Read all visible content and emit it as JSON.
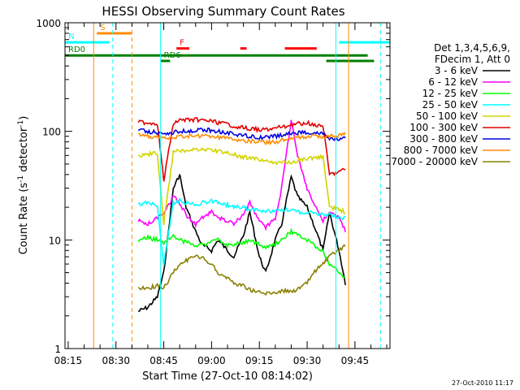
{
  "chart_data": {
    "type": "line",
    "title": "HESSI Observing Summary Count Rates",
    "xlabel": "Start Time (27-Oct-10 08:14:02)",
    "ylabel_main": "Count Rate (s",
    "ylabel_sup1": "-1",
    "ylabel_mid": " detector",
    "ylabel_sup2": "-1",
    "ylabel_end": ")",
    "yscale": "log",
    "ylim": [
      1,
      1000
    ],
    "xlim": [
      "08:14",
      "09:56"
    ],
    "xticks": [
      "08:15",
      "08:30",
      "08:45",
      "09:00",
      "09:15",
      "09:30",
      "09:45"
    ],
    "yticks": [
      "1",
      "10",
      "100",
      "1000"
    ],
    "timestamp": "27-Oct-2010 11:17",
    "legend": {
      "header1": "Det 1,3,4,5,6,9,",
      "header2": "FDecim 1, Att 0",
      "entries": [
        {
          "label": "3 - 6 keV",
          "color": "#000000"
        },
        {
          "label": "6 - 12 keV",
          "color": "#ff00ff"
        },
        {
          "label": "12 - 25 keV",
          "color": "#00ff00"
        },
        {
          "label": "25 - 50 keV",
          "color": "#00ffff"
        },
        {
          "label": "50 - 100 keV",
          "color": "#d4d400"
        },
        {
          "label": "100 - 300 keV",
          "color": "#e00000"
        },
        {
          "label": "300 - 800 keV",
          "color": "#0000e0"
        },
        {
          "label": "800 - 7000 keV",
          "color": "#ff8c00"
        },
        {
          "label": "7000 - 20000 keV",
          "color": "#8b8000"
        }
      ]
    },
    "flags": [
      {
        "label": "S",
        "color": "#ff8c00",
        "level": 800,
        "start": "08:24",
        "end": "08:35"
      },
      {
        "label": "N",
        "color": "#00ffff",
        "level": 660,
        "start": "08:14",
        "end": "08:28"
      },
      {
        "label": "N",
        "color": "#00ffff",
        "level": 660,
        "start": "09:40",
        "end": "09:56"
      },
      {
        "label": "F",
        "color": "#ff0000",
        "level": 580,
        "start": "08:49",
        "end": "08:53"
      },
      {
        "label": "F",
        "color": "#ff0000",
        "level": 580,
        "start": "09:09",
        "end": "09:11"
      },
      {
        "label": "F",
        "color": "#ff0000",
        "level": 580,
        "start": "09:23",
        "end": "09:33"
      },
      {
        "label": "RD0",
        "color": "#008000",
        "level": 500,
        "start": "08:14",
        "end": "09:49"
      },
      {
        "label": "RD6",
        "color": "#008000",
        "level": 445,
        "start": "08:44",
        "end": "08:47"
      },
      {
        "label": "RD6",
        "color": "#008000",
        "level": 445,
        "start": "09:36",
        "end": "09:51"
      }
    ],
    "vlines": [
      {
        "t": "08:23",
        "color": "#ff8c00",
        "dash": false
      },
      {
        "t": "08:29",
        "color": "#00ffff",
        "dash": true
      },
      {
        "t": "08:35",
        "color": "#ff8c00",
        "dash": true
      },
      {
        "t": "08:44",
        "color": "#00ffff",
        "dash": false
      },
      {
        "t": "09:39",
        "color": "#00ffff",
        "dash": false
      },
      {
        "t": "09:43",
        "color": "#ff8c00",
        "dash": false
      },
      {
        "t": "09:53",
        "color": "#00ffff",
        "dash": true
      }
    ],
    "series": [
      {
        "name": "3 - 6 keV",
        "color": "#000000",
        "t": [
          "08:37",
          "08:40",
          "08:43",
          "08:45",
          "08:48",
          "08:50",
          "08:52",
          "08:55",
          "08:57",
          "09:00",
          "09:02",
          "09:05",
          "09:07",
          "09:10",
          "09:12",
          "09:15",
          "09:17",
          "09:20",
          "09:22",
          "09:25",
          "09:27",
          "09:30",
          "09:32",
          "09:35",
          "09:37",
          "09:40",
          "09:42"
        ],
        "v": [
          2.2,
          2.4,
          3.0,
          5,
          30,
          40,
          20,
          12,
          9,
          8,
          10,
          8,
          7,
          11,
          18,
          7,
          5,
          10,
          14,
          38,
          25,
          20,
          14,
          8,
          18,
          8,
          4
        ]
      },
      {
        "name": "6 - 12 keV",
        "color": "#ff00ff",
        "t": [
          "08:37",
          "08:40",
          "08:43",
          "08:45",
          "08:48",
          "08:50",
          "08:52",
          "08:55",
          "08:57",
          "09:00",
          "09:02",
          "09:05",
          "09:07",
          "09:10",
          "09:12",
          "09:15",
          "09:17",
          "09:20",
          "09:22",
          "09:25",
          "09:27",
          "09:30",
          "09:32",
          "09:35",
          "09:37",
          "09:40",
          "09:42"
        ],
        "v": [
          15,
          14,
          16,
          18,
          25,
          22,
          17,
          14,
          16,
          18,
          16,
          15,
          14,
          17,
          22,
          15,
          13,
          16,
          30,
          130,
          60,
          30,
          22,
          15,
          18,
          16,
          12
        ]
      },
      {
        "name": "12 - 25 keV",
        "color": "#00ff00",
        "t": [
          "08:37",
          "08:40",
          "08:43",
          "08:45",
          "08:48",
          "08:50",
          "08:52",
          "08:55",
          "08:57",
          "09:00",
          "09:02",
          "09:05",
          "09:07",
          "09:10",
          "09:12",
          "09:15",
          "09:17",
          "09:20",
          "09:22",
          "09:25",
          "09:27",
          "09:30",
          "09:32",
          "09:35",
          "09:37",
          "09:40",
          "09:42"
        ],
        "v": [
          10,
          10.5,
          10,
          9.5,
          11,
          10,
          9.5,
          9,
          9,
          9.5,
          10,
          9,
          9,
          9.5,
          10,
          9,
          8.5,
          9,
          10,
          12,
          11,
          10,
          9,
          8,
          6,
          5,
          4.5
        ]
      },
      {
        "name": "25 - 50 keV",
        "color": "#00ffff",
        "t": [
          "08:37",
          "08:40",
          "08:43",
          "08:45",
          "08:48",
          "08:50",
          "08:52",
          "08:55",
          "08:57",
          "09:00",
          "09:02",
          "09:05",
          "09:07",
          "09:10",
          "09:12",
          "09:15",
          "09:17",
          "09:20",
          "09:22",
          "09:25",
          "09:27",
          "09:30",
          "09:32",
          "09:35",
          "09:37",
          "09:40",
          "09:42"
        ],
        "v": [
          21,
          22,
          21,
          6,
          22,
          23,
          22,
          21,
          22,
          23,
          22,
          21,
          20,
          20,
          19,
          19,
          18,
          19,
          19,
          19,
          18,
          18,
          18,
          17,
          17,
          16,
          16
        ]
      },
      {
        "name": "50 - 100 keV",
        "color": "#d4d400",
        "t": [
          "08:37",
          "08:40",
          "08:43",
          "08:45",
          "08:48",
          "08:50",
          "08:52",
          "08:55",
          "08:57",
          "09:00",
          "09:02",
          "09:05",
          "09:07",
          "09:10",
          "09:12",
          "09:15",
          "09:17",
          "09:20",
          "09:22",
          "09:25",
          "09:27",
          "09:30",
          "09:32",
          "09:35",
          "09:37",
          "09:40",
          "09:42"
        ],
        "v": [
          60,
          62,
          63,
          14,
          64,
          66,
          67,
          68,
          68,
          67,
          66,
          63,
          61,
          58,
          57,
          55,
          53,
          52,
          51,
          52,
          54,
          56,
          57,
          58,
          20,
          19,
          18
        ]
      },
      {
        "name": "100 - 300 keV",
        "color": "#e00000",
        "t": [
          "08:37",
          "08:40",
          "08:43",
          "08:45",
          "08:48",
          "08:50",
          "08:52",
          "08:55",
          "08:57",
          "09:00",
          "09:02",
          "09:05",
          "09:07",
          "09:10",
          "09:12",
          "09:15",
          "09:17",
          "09:20",
          "09:22",
          "09:25",
          "09:27",
          "09:30",
          "09:32",
          "09:35",
          "09:37",
          "09:40",
          "09:42"
        ],
        "v": [
          122,
          120,
          118,
          35,
          120,
          126,
          128,
          128,
          126,
          124,
          120,
          116,
          112,
          108,
          106,
          104,
          104,
          106,
          110,
          115,
          118,
          120,
          116,
          112,
          40,
          42,
          45
        ]
      },
      {
        "name": "300 - 800 keV",
        "color": "#0000e0",
        "t": [
          "08:37",
          "08:40",
          "08:43",
          "08:45",
          "08:48",
          "08:50",
          "08:52",
          "08:55",
          "08:57",
          "09:00",
          "09:02",
          "09:05",
          "09:07",
          "09:10",
          "09:12",
          "09:15",
          "09:17",
          "09:20",
          "09:22",
          "09:25",
          "09:27",
          "09:30",
          "09:32",
          "09:35",
          "09:37",
          "09:40",
          "09:42"
        ],
        "v": [
          105,
          100,
          97,
          96,
          98,
          100,
          101,
          102,
          103,
          102,
          100,
          97,
          95,
          92,
          90,
          88,
          88,
          90,
          92,
          95,
          97,
          98,
          96,
          95,
          85,
          84,
          86
        ]
      },
      {
        "name": "800 - 7000 keV",
        "color": "#ff8c00",
        "t": [
          "08:37",
          "08:40",
          "08:43",
          "08:45",
          "08:48",
          "08:50",
          "08:52",
          "08:55",
          "08:57",
          "09:00",
          "09:02",
          "09:05",
          "09:07",
          "09:10",
          "09:12",
          "09:15",
          "09:17",
          "09:20",
          "09:22",
          "09:25",
          "09:27",
          "09:30",
          "09:32",
          "09:35",
          "09:37",
          "09:40",
          "09:42"
        ],
        "v": [
          92,
          90,
          88,
          87,
          88,
          89,
          90,
          91,
          91,
          90,
          89,
          87,
          85,
          83,
          81,
          80,
          79,
          80,
          82,
          85,
          88,
          90,
          90,
          89,
          90,
          92,
          95
        ]
      },
      {
        "name": "7000 - 20000 keV",
        "color": "#8b8000",
        "t": [
          "08:37",
          "08:40",
          "08:43",
          "08:45",
          "08:48",
          "08:50",
          "08:52",
          "08:55",
          "08:57",
          "09:00",
          "09:02",
          "09:05",
          "09:07",
          "09:10",
          "09:12",
          "09:15",
          "09:17",
          "09:20",
          "09:22",
          "09:25",
          "09:27",
          "09:30",
          "09:32",
          "09:35",
          "09:37",
          "09:40",
          "09:42"
        ],
        "v": [
          3.6,
          3.6,
          3.8,
          3.6,
          5,
          6,
          6.5,
          7,
          6.8,
          6,
          5,
          4.5,
          4,
          3.8,
          3.5,
          3.3,
          3.2,
          3.3,
          3.4,
          3.4,
          3.5,
          4,
          5,
          6,
          7,
          8,
          9
        ]
      }
    ]
  }
}
